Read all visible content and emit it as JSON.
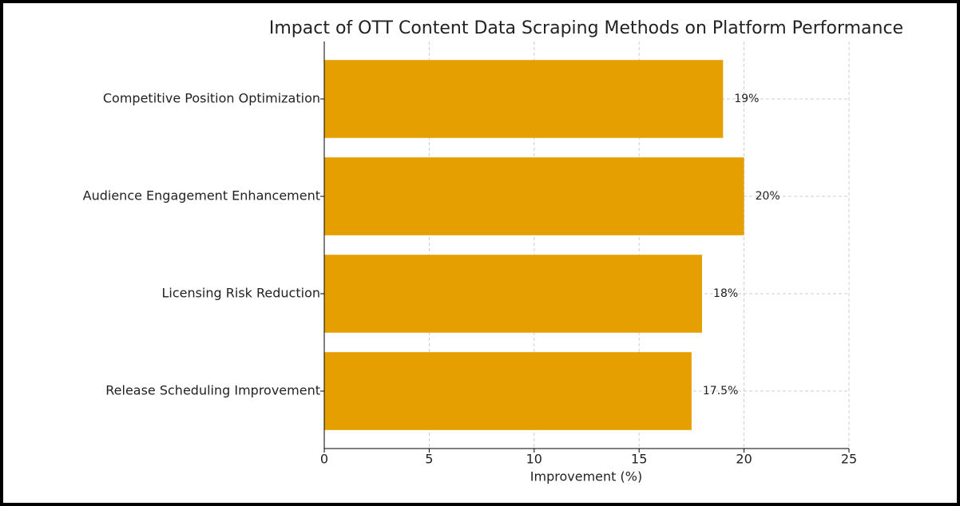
{
  "chart_data": {
    "type": "barh",
    "title": "Impact of OTT Content Data Scraping Methods on Platform Performance",
    "x_label": "Improvement (%)",
    "categories": [
      "Competitive Position Optimization",
      "Audience Engagement Enhancement",
      "Licensing Risk Reduction",
      "Release Scheduling Improvement"
    ],
    "values": [
      19,
      20,
      18,
      17.5
    ],
    "value_labels": [
      "19%",
      "20%",
      "18%",
      "17.5%"
    ],
    "color": "#e69f00",
    "xlim": [
      0,
      25
    ],
    "xticks": [
      0,
      5,
      10,
      15,
      20,
      25
    ],
    "grid": true
  }
}
